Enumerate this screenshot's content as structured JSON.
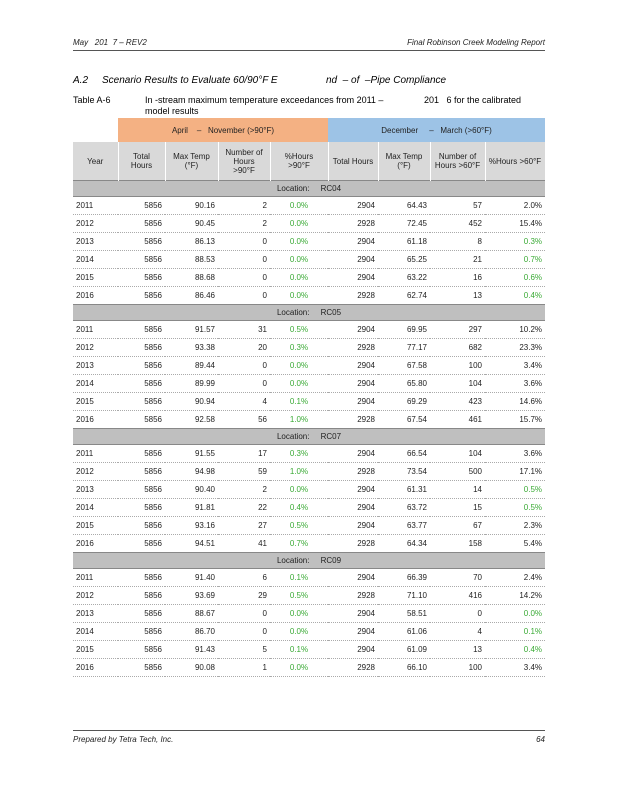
{
  "header": {
    "left": "May   201  7 – REV2",
    "right": "Final Robinson Creek Modeling Report"
  },
  "section": {
    "number": "A.2",
    "title_part1": "Scenario Results to Evaluate 60/90°F E",
    "title_part2": "nd  – of  –Pipe Compliance"
  },
  "caption": {
    "label": "Table A-6",
    "text_part1": "In -stream maximum temperature exceedances from 2011 –",
    "text_part2": "201   6 for the calibrated",
    "text_part3": "model results"
  },
  "table": {
    "groups": [
      "April    –   November (>90°F)",
      "December     –   March (>60°F)"
    ],
    "columns": [
      "Year",
      "Total Hours",
      "Max Temp (°F)",
      "Number of Hours >90°F",
      "%Hours >90°F",
      "Total Hours",
      "Max Temp (°F)",
      "Number of Hours >60°F",
      "%Hours >60°F"
    ],
    "sections": [
      {
        "location": "Location:     RC04",
        "rows": [
          [
            "2011",
            "5856",
            "90.16",
            "2",
            "0.0%",
            "2904",
            "64.43",
            "57",
            "2.0%"
          ],
          [
            "2012",
            "5856",
            "90.45",
            "2",
            "0.0%",
            "2928",
            "72.45",
            "452",
            "15.4%"
          ],
          [
            "2013",
            "5856",
            "86.13",
            "0",
            "0.0%",
            "2904",
            "61.18",
            "8",
            "0.3%"
          ],
          [
            "2014",
            "5856",
            "88.53",
            "0",
            "0.0%",
            "2904",
            "65.25",
            "21",
            "0.7%"
          ],
          [
            "2015",
            "5856",
            "88.68",
            "0",
            "0.0%",
            "2904",
            "63.22",
            "16",
            "0.6%"
          ],
          [
            "2016",
            "5856",
            "86.46",
            "0",
            "0.0%",
            "2928",
            "62.74",
            "13",
            "0.4%"
          ]
        ]
      },
      {
        "location": "Location:     RC05",
        "rows": [
          [
            "2011",
            "5856",
            "91.57",
            "31",
            "0.5%",
            "2904",
            "69.95",
            "297",
            "10.2%"
          ],
          [
            "2012",
            "5856",
            "93.38",
            "20",
            "0.3%",
            "2928",
            "77.17",
            "682",
            "23.3%"
          ],
          [
            "2013",
            "5856",
            "89.44",
            "0",
            "0.0%",
            "2904",
            "67.58",
            "100",
            "3.4%"
          ],
          [
            "2014",
            "5856",
            "89.99",
            "0",
            "0.0%",
            "2904",
            "65.80",
            "104",
            "3.6%"
          ],
          [
            "2015",
            "5856",
            "90.94",
            "4",
            "0.1%",
            "2904",
            "69.29",
            "423",
            "14.6%"
          ],
          [
            "2016",
            "5856",
            "92.58",
            "56",
            "1.0%",
            "2928",
            "67.54",
            "461",
            "15.7%"
          ]
        ]
      },
      {
        "location": "Location:     RC07",
        "rows": [
          [
            "2011",
            "5856",
            "91.55",
            "17",
            "0.3%",
            "2904",
            "66.54",
            "104",
            "3.6%"
          ],
          [
            "2012",
            "5856",
            "94.98",
            "59",
            "1.0%",
            "2928",
            "73.54",
            "500",
            "17.1%"
          ],
          [
            "2013",
            "5856",
            "90.40",
            "2",
            "0.0%",
            "2904",
            "61.31",
            "14",
            "0.5%"
          ],
          [
            "2014",
            "5856",
            "91.81",
            "22",
            "0.4%",
            "2904",
            "63.72",
            "15",
            "0.5%"
          ],
          [
            "2015",
            "5856",
            "93.16",
            "27",
            "0.5%",
            "2904",
            "63.77",
            "67",
            "2.3%"
          ],
          [
            "2016",
            "5856",
            "94.51",
            "41",
            "0.7%",
            "2928",
            "64.34",
            "158",
            "5.4%"
          ]
        ]
      },
      {
        "location": "Location:     RC09",
        "rows": [
          [
            "2011",
            "5856",
            "91.40",
            "6",
            "0.1%",
            "2904",
            "66.39",
            "70",
            "2.4%"
          ],
          [
            "2012",
            "5856",
            "93.69",
            "29",
            "0.5%",
            "2928",
            "71.10",
            "416",
            "14.2%"
          ],
          [
            "2013",
            "5856",
            "88.67",
            "0",
            "0.0%",
            "2904",
            "58.51",
            "0",
            "0.0%"
          ],
          [
            "2014",
            "5856",
            "86.70",
            "0",
            "0.0%",
            "2904",
            "61.06",
            "4",
            "0.1%"
          ],
          [
            "2015",
            "5856",
            "91.43",
            "5",
            "0.1%",
            "2904",
            "61.09",
            "13",
            "0.4%"
          ],
          [
            "2016",
            "5856",
            "90.08",
            "1",
            "0.0%",
            "2928",
            "66.10",
            "100",
            "3.4%"
          ]
        ]
      }
    ]
  },
  "footer": {
    "left": "Prepared by Tetra Tech, Inc.",
    "right": "64"
  }
}
